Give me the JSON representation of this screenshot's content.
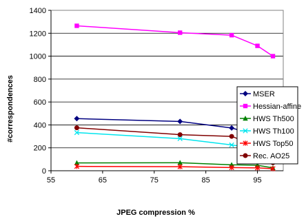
{
  "chart_data": {
    "type": "line",
    "xlabel": "JPEG compression %",
    "ylabel": "#correspondences",
    "xlim": [
      55,
      100
    ],
    "ylim": [
      0,
      1400
    ],
    "xticks": [
      55,
      65,
      75,
      85,
      95
    ],
    "yticks": [
      0,
      200,
      400,
      600,
      800,
      1000,
      1200,
      1400
    ],
    "x": [
      60,
      80,
      90,
      95,
      98
    ],
    "grid": "horizontal",
    "legend_position": "right",
    "series": [
      {
        "name": "MSER",
        "values": [
          455,
          430,
          373,
          310,
          202
        ],
        "color": "#000080",
        "marker": "diamond"
      },
      {
        "name": "Hessian-affine",
        "values": [
          1265,
          1205,
          1183,
          1090,
          1000
        ],
        "color": "#ff00ff",
        "marker": "square"
      },
      {
        "name": "HWS Th500",
        "values": [
          68,
          70,
          52,
          48,
          25
        ],
        "color": "#008000",
        "marker": "triangle"
      },
      {
        "name": "HWS Th100",
        "values": [
          333,
          280,
          225,
          192,
          110
        ],
        "color": "#00e5ee",
        "marker": "x"
      },
      {
        "name": "HWS Top50",
        "values": [
          38,
          35,
          28,
          25,
          18
        ],
        "color": "#ff0000",
        "marker": "star"
      },
      {
        "name": "Rec. AO25",
        "values": [
          375,
          315,
          300,
          215,
          70
        ],
        "color": "#800000",
        "marker": "circle"
      }
    ]
  }
}
